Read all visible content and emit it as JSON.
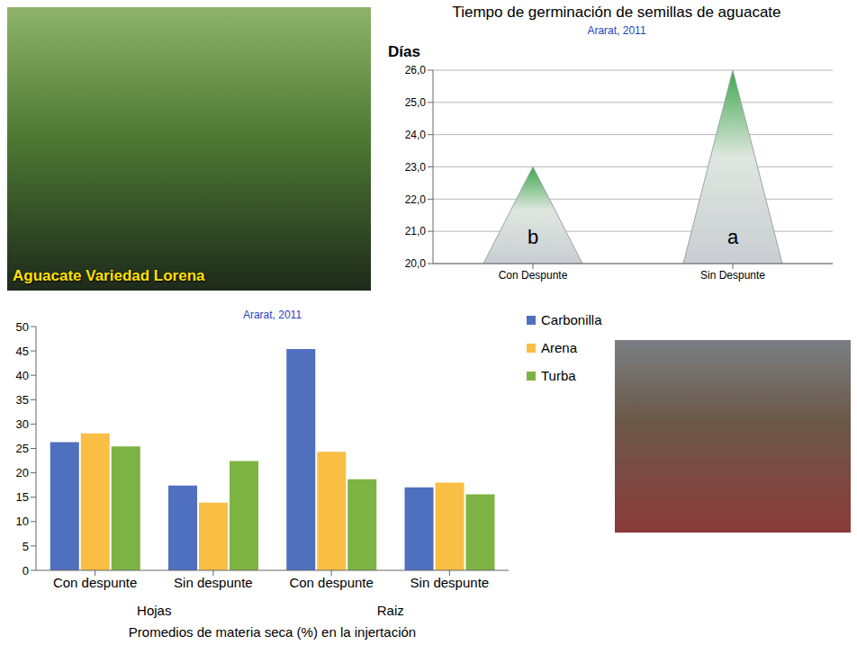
{
  "photo_caption": "Aguacate Variedad Lorena",
  "chart_data": [
    {
      "type": "bar",
      "marker": "cone",
      "title": "Tiempo de germinación de semillas de aguacate",
      "subtitle": "Ararat, 2011",
      "y_label": "Días",
      "categories": [
        "Con Despunte",
        "Sin Despunte"
      ],
      "values": [
        23.0,
        26.0
      ],
      "annotations": [
        "b",
        "a"
      ],
      "color": "#3da84a",
      "ylim": [
        20,
        26
      ],
      "yticks": [
        {
          "value": 20,
          "label": "20,0"
        },
        {
          "value": 21,
          "label": "21,0"
        },
        {
          "value": 22,
          "label": "22,0"
        },
        {
          "value": 23,
          "label": "23,0"
        },
        {
          "value": 24,
          "label": "24,0"
        },
        {
          "value": 25,
          "label": "25,0"
        },
        {
          "value": 26,
          "label": "26,0"
        }
      ],
      "grid": true
    },
    {
      "type": "bar",
      "title": "Promedios de materia seca (%) en la injertación",
      "subtitle": "Ararat, 2011",
      "categories": [
        "Con despunte",
        "Sin despunte",
        "Con despunte",
        "Sin despunte"
      ],
      "groups": [
        "Hojas",
        "Raiz"
      ],
      "series": [
        {
          "name": "Carbonilla",
          "color": "#4f6fbf",
          "values": [
            26.3,
            17.4,
            45.4,
            17.0
          ]
        },
        {
          "name": "Arena",
          "color": "#f9be44",
          "values": [
            28.1,
            13.9,
            24.3,
            18.0
          ]
        },
        {
          "name": "Turba",
          "color": "#7cb342",
          "values": [
            25.4,
            22.4,
            18.7,
            15.6
          ]
        }
      ],
      "ylim": [
        0,
        50
      ],
      "yticks": [
        0,
        5,
        10,
        15,
        20,
        25,
        30,
        35,
        40,
        45,
        50
      ],
      "grid": false,
      "legend": "right"
    }
  ]
}
